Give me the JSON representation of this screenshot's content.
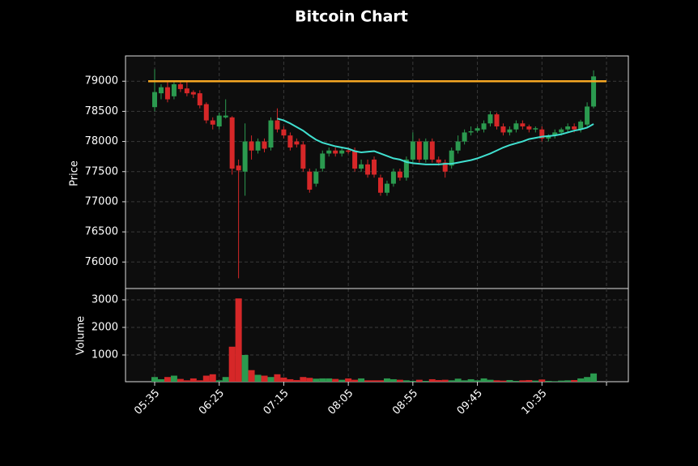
{
  "chart_data": {
    "type": "candlestick",
    "title": "Bitcoin Chart",
    "ylabel": "Price",
    "categories": [
      "05:35",
      null,
      null,
      null,
      null,
      null,
      null,
      null,
      null,
      null,
      "06:25",
      null,
      null,
      null,
      null,
      null,
      null,
      null,
      null,
      null,
      "07:15",
      null,
      null,
      null,
      null,
      null,
      null,
      null,
      null,
      null,
      "08:05",
      null,
      null,
      null,
      null,
      null,
      null,
      null,
      null,
      null,
      "08:55",
      null,
      null,
      null,
      null,
      null,
      null,
      null,
      null,
      null,
      "09:45",
      null,
      null,
      null,
      null,
      null,
      null,
      null,
      null,
      null,
      "10:35",
      null,
      null,
      null,
      null,
      null,
      null,
      null,
      null
    ],
    "open": [
      78570,
      78800,
      78900,
      78750,
      78950,
      78880,
      78820,
      78800,
      78620,
      78350,
      78250,
      78400,
      78400,
      77600,
      77500,
      78000,
      77850,
      78000,
      77900,
      78350,
      78200,
      78100,
      78000,
      77950,
      77500,
      77300,
      77550,
      77800,
      77850,
      77800,
      77850,
      77850,
      77550,
      77620,
      77700,
      77400,
      77150,
      77300,
      77500,
      77400,
      77700,
      78000,
      77700,
      78000,
      77700,
      77650,
      77600,
      77850,
      78000,
      78150,
      78180,
      78200,
      78300,
      78450,
      78250,
      78150,
      78200,
      78300,
      78250,
      78200,
      78200,
      78050,
      78100,
      78150,
      78200,
      78250,
      78200,
      78280,
      78580
    ],
    "high": [
      79200,
      78950,
      79000,
      79000,
      79000,
      79000,
      78850,
      78850,
      78650,
      78400,
      78480,
      78700,
      78420,
      77700,
      78300,
      78100,
      78050,
      78050,
      78400,
      78550,
      78250,
      78150,
      78050,
      78000,
      77550,
      77550,
      77850,
      77900,
      77900,
      77900,
      77900,
      77900,
      77700,
      77700,
      77750,
      77450,
      77350,
      77550,
      77550,
      77750,
      78150,
      78050,
      78050,
      78050,
      77750,
      77700,
      77900,
      78100,
      78200,
      78250,
      78250,
      78350,
      78500,
      78480,
      78300,
      78250,
      78350,
      78350,
      78280,
      78250,
      78250,
      78120,
      78200,
      78230,
      78300,
      78300,
      78360,
      78650,
      79180
    ],
    "low": [
      78500,
      78700,
      78650,
      78700,
      78820,
      78750,
      78720,
      78550,
      78300,
      78200,
      78200,
      78380,
      77450,
      75730,
      77100,
      77700,
      77800,
      77820,
      77850,
      78150,
      78050,
      77850,
      77900,
      77500,
      77150,
      77250,
      77500,
      77750,
      77750,
      77750,
      77800,
      77500,
      77500,
      77400,
      77400,
      77100,
      77100,
      77250,
      77350,
      77350,
      77650,
      77650,
      77650,
      77650,
      77600,
      77400,
      77550,
      77800,
      77950,
      78100,
      78150,
      78150,
      78250,
      78200,
      78100,
      78100,
      78150,
      78200,
      78150,
      78150,
      78000,
      78000,
      78050,
      78100,
      78150,
      78150,
      78150,
      78250,
      78550
    ],
    "close": [
      78820,
      78900,
      78700,
      78950,
      78870,
      78800,
      78780,
      78600,
      78350,
      78280,
      78430,
      78430,
      77550,
      77520,
      78000,
      77850,
      78000,
      77880,
      78350,
      78200,
      78100,
      77900,
      77950,
      77550,
      77200,
      77500,
      77800,
      77850,
      77800,
      77850,
      77830,
      77550,
      77620,
      77450,
      77450,
      77150,
      77300,
      77500,
      77400,
      77700,
      78000,
      77700,
      78000,
      77700,
      77650,
      77500,
      77850,
      78000,
      78150,
      78170,
      78220,
      78300,
      78450,
      78250,
      78150,
      78200,
      78300,
      78250,
      78200,
      78220,
      78050,
      78100,
      78150,
      78200,
      78250,
      78200,
      78330,
      78580,
      79080
    ],
    "ma": {
      "color": "#40e0d0",
      "values": [
        null,
        null,
        null,
        null,
        null,
        null,
        null,
        null,
        null,
        null,
        null,
        null,
        null,
        null,
        null,
        null,
        null,
        null,
        null,
        78380,
        78350,
        78300,
        78240,
        78180,
        78100,
        78030,
        77980,
        77950,
        77920,
        77900,
        77880,
        77840,
        77820,
        77830,
        77840,
        77800,
        77760,
        77720,
        77700,
        77660,
        77640,
        77630,
        77620,
        77620,
        77620,
        77630,
        77630,
        77650,
        77670,
        77690,
        77720,
        77760,
        77800,
        77850,
        77900,
        77940,
        77970,
        78000,
        78040,
        78060,
        78080,
        78090,
        78100,
        78120,
        78150,
        78180,
        78200,
        78230,
        78290
      ]
    },
    "hline": {
      "value": 79000,
      "color": "#f5a623"
    },
    "up_color": "#2b9a4f",
    "down_color": "#d62728",
    "ylim": [
      75560,
      79420
    ],
    "yticks": [
      76000,
      76500,
      77000,
      77500,
      78000,
      78500,
      79000
    ],
    "grid": true,
    "volume": {
      "ylabel": "Volume",
      "values": [
        200,
        120,
        200,
        250,
        130,
        80,
        150,
        80,
        250,
        300,
        80,
        200,
        1300,
        3050,
        1000,
        450,
        280,
        250,
        200,
        300,
        180,
        120,
        90,
        200,
        170,
        140,
        150,
        150,
        130,
        100,
        150,
        100,
        150,
        80,
        80,
        80,
        150,
        120,
        100,
        80,
        60,
        100,
        60,
        120,
        90,
        100,
        80,
        140,
        80,
        120,
        80,
        150,
        100,
        80,
        70,
        90,
        60,
        80,
        90,
        70,
        110,
        60,
        50,
        70,
        80,
        90,
        150,
        200,
        330
      ],
      "ylim": [
        30,
        3410
      ],
      "yticks": [
        1000,
        2000,
        3000
      ]
    }
  }
}
